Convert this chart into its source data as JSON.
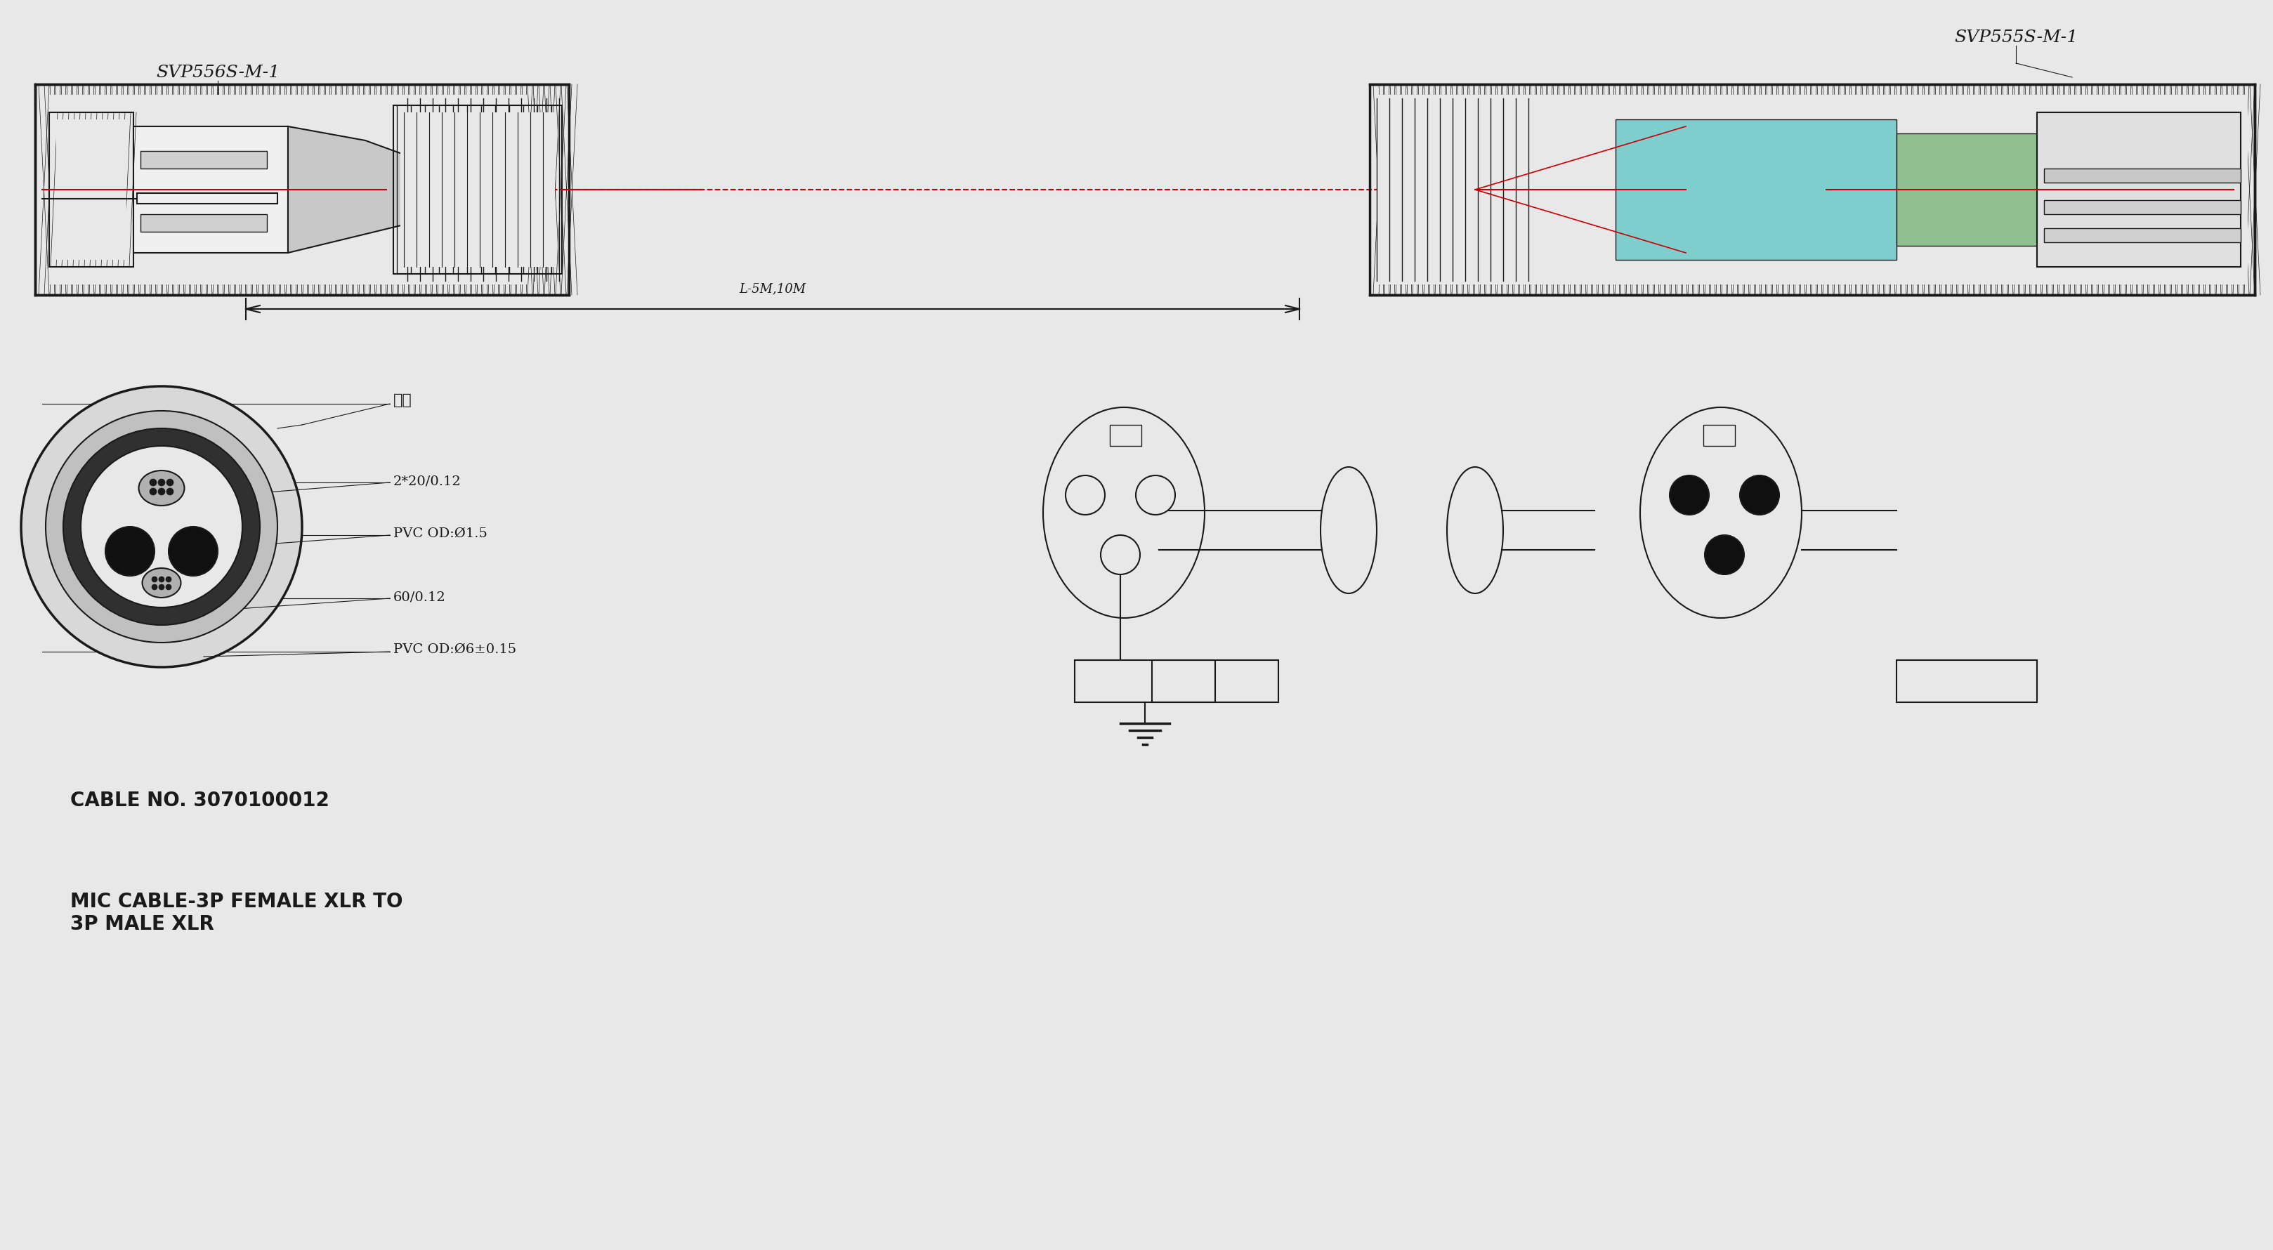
{
  "bg_color": "#e8e8e8",
  "line_color": "#1a1a1a",
  "red_line_color": "#cc0000",
  "cyan_color": "#7ecece",
  "green_color": "#90c090",
  "title_left": "SVP556S-M-1",
  "title_right": "SVP555S-M-1",
  "dim_label": "L-5M,10M",
  "cable_no": "CABLE NO. 3070100012",
  "mic_cable": "MIC CABLE-3P FEMALE XLR TO\n3P MALE XLR",
  "labels_left": [
    "棉线",
    "2*20/0.12",
    "PVC OD:Ø1.5",
    "60/0.12",
    "PVC OD:Ø6±0.15"
  ],
  "font_size_title": 18,
  "font_size_label": 14,
  "font_size_dim": 13,
  "font_size_info": 20
}
